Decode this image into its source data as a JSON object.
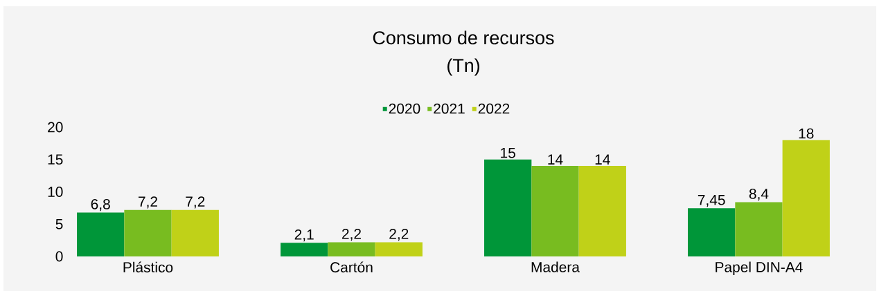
{
  "chart_data": {
    "type": "bar",
    "title": "Consumo de recursos",
    "subtitle": "(Tn)",
    "categories": [
      "Plástico",
      "Cartón",
      "Madera",
      "Papel DIN-A4"
    ],
    "series": [
      {
        "name": "2020",
        "color": "#009639",
        "values": [
          6.8,
          2.1,
          15,
          7.45
        ],
        "value_labels": [
          "6,8",
          "2,1",
          "15",
          "7,45"
        ]
      },
      {
        "name": "2021",
        "color": "#78bc20",
        "values": [
          7.2,
          2.2,
          14,
          8.4
        ],
        "value_labels": [
          "7,2",
          "2,2",
          "14",
          "8,4"
        ]
      },
      {
        "name": "2022",
        "color": "#c0d118",
        "values": [
          7.2,
          2.2,
          14,
          18
        ],
        "value_labels": [
          "7,2",
          "2,2",
          "14",
          "18"
        ]
      }
    ],
    "ylim": [
      0,
      20
    ],
    "yticks": [
      0,
      5,
      10,
      15,
      20
    ],
    "legend": "top"
  }
}
